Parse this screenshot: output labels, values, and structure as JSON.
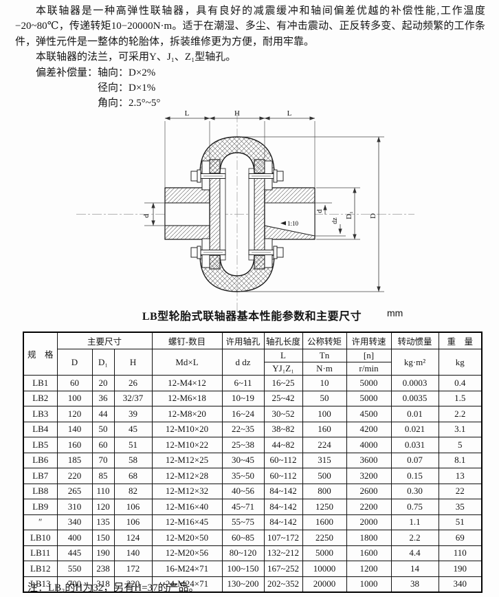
{
  "intro": {
    "para1": "本联轴器是一种高弹性联轴器，具有良好的减震缓冲和轴间偏差优越的补偿性能,工作温度−20~80℃，传递转矩10−20000N·m。适于在潮湿、多尘、有冲击震动、正反转多变、起动频繁的工作条件，弹性元件是一整体的轮胎体，拆装维修更为方便，耐用牢靠。",
    "para2": "本联轴器的法兰，可采用Y、J₁、Z₁型轴孔。",
    "comp1": "偏差补偿量：轴向：D×2%",
    "comp2": "径向：D×1%",
    "comp3": "角向：2.5°~5°"
  },
  "drawing": {
    "dim_top_left": "L",
    "dim_top_mid": "H",
    "dim_top_right": "L",
    "dim_left_bore": "d",
    "dim_right_bore": "d",
    "dim_right_bore_z": "dz",
    "dim_hub_dia": "D₁",
    "dim_outer_dia": "D",
    "taper": "1:10"
  },
  "table": {
    "title": "LB型轮胎式联轴器基本性能参数和主要尺寸",
    "unit": "mm",
    "header": {
      "spec": "规　格",
      "main_dims": "主要尺寸",
      "col_D": "D",
      "col_D1": "D₁",
      "col_H": "H",
      "screws": "螺钉-数目",
      "screws_sub": "Md×L",
      "bore": "许用轴孔",
      "bore_sub": "d dz",
      "bore_len": "轴孔长度",
      "bore_len_l": "L",
      "bore_len_sub": "YJ₁Z₁",
      "torque": "公称转矩",
      "torque_sym": "Tn",
      "torque_unit": "N·m",
      "speed": "许用转速",
      "speed_sym": "[n]",
      "speed_unit": "r/min",
      "inertia": "转动惯量",
      "inertia_unit": "kg·m²",
      "weight": "重　量",
      "weight_unit": "kg"
    },
    "rows": [
      [
        "LB1",
        "60",
        "20",
        "26",
        "12-M4×12",
        "6~11",
        "16~25",
        "10",
        "5000",
        "0.0003",
        "0.4"
      ],
      [
        "LB2",
        "100",
        "36",
        "32/37",
        "12-M6×18",
        "10~19",
        "25~42",
        "50",
        "5000",
        "0.0035",
        "1.5"
      ],
      [
        "LB3",
        "120",
        "44",
        "39",
        "12-M8×20",
        "16~24",
        "30~52",
        "100",
        "4500",
        "0.01",
        "2.2"
      ],
      [
        "LB4",
        "140",
        "50",
        "45",
        "12-M10×20",
        "22~35",
        "38~82",
        "160",
        "4200",
        "0.021",
        "3.1"
      ],
      [
        "LB5",
        "160",
        "60",
        "51",
        "12-M10×22",
        "25~38",
        "44~82",
        "224",
        "4000",
        "0.031",
        "5"
      ],
      [
        "LB6",
        "185",
        "70",
        "58",
        "12-M12×25",
        "30~45",
        "60~112",
        "315",
        "3600",
        "0.07",
        "8.1"
      ],
      [
        "LB7",
        "220",
        "85",
        "68",
        "12-M12×28",
        "35~50",
        "60~112",
        "500",
        "3200",
        "0.15",
        "13"
      ],
      [
        "LB8",
        "265",
        "110",
        "82",
        "12-M12×32",
        "40~56",
        "84~142",
        "800",
        "2600",
        "0.30",
        "22"
      ],
      [
        "LB9",
        "310",
        "120",
        "106",
        "12-M16×40",
        "45~71",
        "84~142",
        "1250",
        "2200",
        "0.75",
        "35"
      ],
      [
        "″",
        "340",
        "135",
        "106",
        "12-M16×45",
        "55~75",
        "84~142",
        "1600",
        "2000",
        "1.1",
        "51"
      ],
      [
        "LB10",
        "400",
        "150",
        "124",
        "12-M20×50",
        "60~85",
        "107~172",
        "2250",
        "1800",
        "2.2",
        "69"
      ],
      [
        "LB11",
        "445",
        "190",
        "140",
        "12-M20×56",
        "80~120",
        "132~212",
        "5000",
        "1600",
        "4.4",
        "110"
      ],
      [
        "LB12",
        "550",
        "238",
        "172",
        "16-M24×71",
        "100~150",
        "167~252",
        "10000",
        "1200",
        "14",
        "190"
      ],
      [
        "LB13",
        "700",
        "318",
        "220",
        "24-M24×71",
        "130~200",
        "202~352",
        "20000",
        "1000",
        "38",
        "340"
      ]
    ],
    "note": "注：LB₂的H为32，另有H=37的产品。"
  }
}
